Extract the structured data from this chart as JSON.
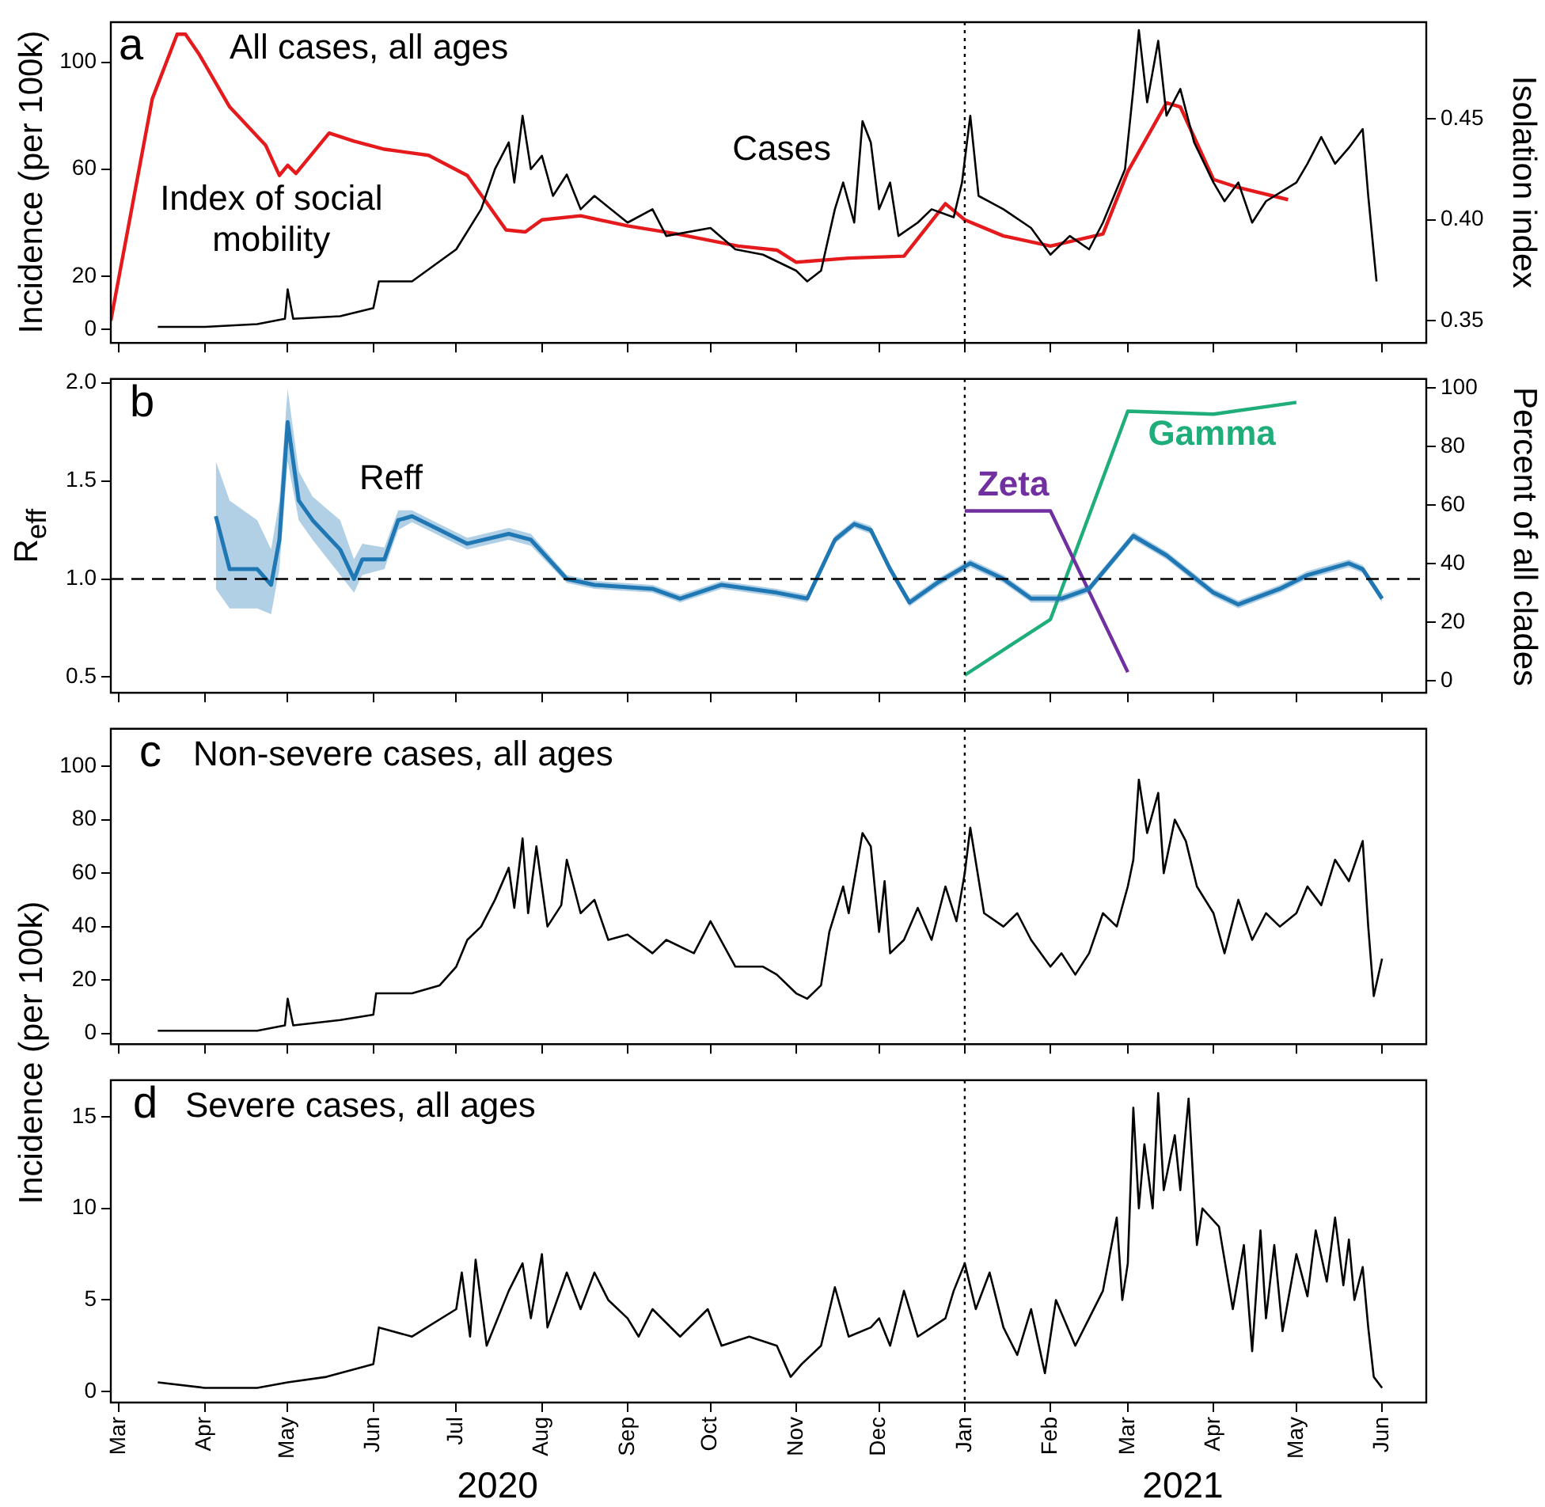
{
  "chart_data": [
    {
      "type": "line",
      "title": "All cases, all ages",
      "ylabel": "Incidence (per 100k)",
      "y2label": "Isolation index",
      "annotations": [
        "a"
      ],
      "marker": "none",
      "tick_labels": "y",
      "xlim": [
        "2020-02-27",
        "2021-06-17"
      ],
      "xticks": [
        {
          "value": "2020-03-01",
          "label": null
        },
        {
          "value": "2020-04-01",
          "label": null
        },
        {
          "value": "2020-05-01",
          "label": null
        },
        {
          "value": "2020-06-01",
          "label": null
        },
        {
          "value": "2020-07-01",
          "label": null
        },
        {
          "value": "2020-08-01",
          "label": null
        },
        {
          "value": "2020-09-01",
          "label": null
        },
        {
          "value": "2020-10-01",
          "label": null
        },
        {
          "value": "2020-11-01",
          "label": null
        },
        {
          "value": "2020-12-01",
          "label": null
        },
        {
          "value": "2021-01-01",
          "label": null
        },
        {
          "value": "2021-02-01",
          "label": null
        },
        {
          "value": "2021-03-01",
          "label": null
        },
        {
          "value": "2021-04-01",
          "label": null
        },
        {
          "value": "2021-05-01",
          "label": null
        },
        {
          "value": "2021-06-01",
          "label": null
        }
      ],
      "ylim": [
        -5,
        115
      ],
      "yticks": [
        0,
        20,
        60,
        100
      ],
      "y2lim": [
        0.339,
        0.498
      ],
      "y2ticks": [
        {
          "value": 0.35,
          "label": "0.35"
        },
        {
          "value": 0.4,
          "label": "0.40"
        },
        {
          "value": 0.45,
          "label": "0.45"
        }
      ],
      "ref_lines": [
        {
          "axis": "x",
          "value": "2021-01-01",
          "line_style": "dotted",
          "color": "#000000"
        }
      ],
      "series": [
        {
          "name": "Cases",
          "color": "#000000",
          "x": [
            "2020-03-15",
            "2020-04-01",
            "2020-04-20",
            "2020-04-30",
            "2020-05-01",
            "2020-05-03",
            "2020-05-20",
            "2020-06-01",
            "2020-06-03",
            "2020-06-15",
            "2020-07-01",
            "2020-07-10",
            "2020-07-15",
            "2020-07-20",
            "2020-07-22",
            "2020-07-25",
            "2020-07-28",
            "2020-08-01",
            "2020-08-05",
            "2020-08-10",
            "2020-08-15",
            "2020-08-20",
            "2020-09-01",
            "2020-09-10",
            "2020-09-15",
            "2020-10-01",
            "2020-10-10",
            "2020-10-20",
            "2020-11-01",
            "2020-11-05",
            "2020-11-10",
            "2020-11-15",
            "2020-11-18",
            "2020-11-22",
            "2020-11-25",
            "2020-11-28",
            "2020-12-01",
            "2020-12-05",
            "2020-12-08",
            "2020-12-15",
            "2020-12-20",
            "2020-12-28",
            "2020-12-31",
            "2021-01-03",
            "2021-01-06",
            "2021-01-15",
            "2021-01-25",
            "2021-02-01",
            "2021-02-08",
            "2021-02-15",
            "2021-02-20",
            "2021-02-28",
            "2021-03-03",
            "2021-03-05",
            "2021-03-08",
            "2021-03-12",
            "2021-03-15",
            "2021-03-20",
            "2021-03-25",
            "2021-04-01",
            "2021-04-05",
            "2021-04-10",
            "2021-04-15",
            "2021-04-20",
            "2021-05-01",
            "2021-05-05",
            "2021-05-10",
            "2021-05-15",
            "2021-05-20",
            "2021-05-25",
            "2021-05-27",
            "2021-05-30"
          ],
          "values": [
            1,
            1,
            2,
            4,
            15,
            4,
            5,
            8,
            18,
            18,
            30,
            45,
            60,
            70,
            55,
            80,
            60,
            65,
            50,
            58,
            45,
            50,
            40,
            45,
            35,
            38,
            30,
            28,
            22,
            18,
            22,
            45,
            55,
            40,
            78,
            70,
            45,
            55,
            35,
            40,
            45,
            42,
            55,
            80,
            50,
            45,
            38,
            28,
            35,
            30,
            40,
            60,
            90,
            112,
            85,
            108,
            80,
            90,
            70,
            55,
            48,
            55,
            40,
            48,
            55,
            62,
            72,
            62,
            68,
            75,
            50,
            18
          ]
        },
        {
          "name": "Index of social mobility",
          "color": "#e41a1c",
          "axis": "y2",
          "x": [
            "2020-02-27",
            "2020-03-13",
            "2020-03-22",
            "2020-03-25",
            "2020-03-30",
            "2020-04-10",
            "2020-04-23",
            "2020-04-28",
            "2020-05-01",
            "2020-05-04",
            "2020-05-16",
            "2020-05-25",
            "2020-06-05",
            "2020-06-21",
            "2020-07-05",
            "2020-07-19",
            "2020-07-26",
            "2020-08-01",
            "2020-08-15",
            "2020-09-01",
            "2020-09-19",
            "2020-10-11",
            "2020-10-25",
            "2020-11-01",
            "2020-11-20",
            "2020-12-10",
            "2020-12-25",
            "2021-01-01",
            "2021-01-15",
            "2021-02-01",
            "2021-02-20",
            "2021-03-01",
            "2021-03-15",
            "2021-03-20",
            "2021-04-01",
            "2021-04-10",
            "2021-04-28"
          ],
          "values": [
            0.35,
            0.46,
            0.492,
            0.492,
            0.482,
            0.456,
            0.437,
            0.422,
            0.427,
            0.423,
            0.443,
            0.439,
            0.435,
            0.432,
            0.422,
            0.395,
            0.394,
            0.4,
            0.402,
            0.397,
            0.393,
            0.387,
            0.385,
            0.379,
            0.381,
            0.382,
            0.408,
            0.4,
            0.392,
            0.387,
            0.393,
            0.424,
            0.458,
            0.456,
            0.42,
            0.416,
            0.41
          ]
        }
      ]
    },
    {
      "type": "line",
      "ylabel": "R$_{eff}$",
      "y2label": "Percent of all clades",
      "annotations": [
        "b"
      ],
      "marker": "none",
      "tick_labels": "y",
      "xlim": [
        "2020-02-27",
        "2021-06-17"
      ],
      "xticks": [
        {
          "value": "2020-03-01",
          "label": null
        },
        {
          "value": "2020-04-01",
          "label": null
        },
        {
          "value": "2020-05-01",
          "label": null
        },
        {
          "value": "2020-06-01",
          "label": null
        },
        {
          "value": "2020-07-01",
          "label": null
        },
        {
          "value": "2020-08-01",
          "label": null
        },
        {
          "value": "2020-09-01",
          "label": null
        },
        {
          "value": "2020-10-01",
          "label": null
        },
        {
          "value": "2020-11-01",
          "label": null
        },
        {
          "value": "2020-12-01",
          "label": null
        },
        {
          "value": "2021-01-01",
          "label": null
        },
        {
          "value": "2021-02-01",
          "label": null
        },
        {
          "value": "2021-03-01",
          "label": null
        },
        {
          "value": "2021-04-01",
          "label": null
        },
        {
          "value": "2021-05-01",
          "label": null
        },
        {
          "value": "2021-06-01",
          "label": null
        }
      ],
      "ylim": [
        0.42,
        2.02
      ],
      "yticks": [
        0.5,
        {
          "value": 1,
          "label": "1.0"
        },
        1.5,
        {
          "value": 2,
          "label": "2.0"
        }
      ],
      "y2lim": [
        -4,
        103
      ],
      "y2ticks": [
        0,
        20,
        40,
        60,
        80,
        100
      ],
      "ref_lines": [
        {
          "axis": "x",
          "value": "2021-01-01",
          "line_style": "dotted",
          "color": "#000000"
        },
        {
          "axis": "y",
          "value": 1,
          "line_style": "dashed",
          "color": "#000000"
        }
      ],
      "series": [
        {
          "name": "Reff",
          "color": "#1f77b4",
          "x": [
            "2020-04-05",
            "2020-04-10",
            "2020-04-20",
            "2020-04-25",
            "2020-04-28",
            "2020-05-01",
            "2020-05-05",
            "2020-05-10",
            "2020-05-20",
            "2020-05-25",
            "2020-05-28",
            "2020-06-05",
            "2020-06-10",
            "2020-06-15",
            "2020-06-25",
            "2020-07-05",
            "2020-07-20",
            "2020-07-28",
            "2020-08-10",
            "2020-08-20",
            "2020-09-10",
            "2020-09-20",
            "2020-10-05",
            "2020-10-25",
            "2020-11-05",
            "2020-11-15",
            "2020-11-22",
            "2020-11-28",
            "2020-12-05",
            "2020-12-12",
            "2020-12-22",
            "2021-01-03",
            "2021-01-15",
            "2021-01-25",
            "2021-02-05",
            "2021-02-15",
            "2021-03-03",
            "2021-03-15",
            "2021-04-01",
            "2021-04-10",
            "2021-04-25",
            "2021-05-05",
            "2021-05-20",
            "2021-05-25",
            "2021-06-01"
          ],
          "values": [
            1.32,
            1.05,
            1.05,
            0.97,
            1.2,
            1.8,
            1.4,
            1.3,
            1.15,
            1.0,
            1.1,
            1.1,
            1.3,
            1.32,
            1.25,
            1.18,
            1.23,
            1.2,
            1.0,
            0.97,
            0.95,
            0.9,
            0.97,
            0.93,
            0.9,
            1.2,
            1.28,
            1.25,
            1.05,
            0.88,
            0.98,
            1.08,
            1.0,
            0.9,
            0.9,
            0.95,
            1.22,
            1.12,
            0.93,
            0.87,
            0.95,
            1.02,
            1.08,
            1.05,
            0.9
          ],
          "lower": [
            0.95,
            0.85,
            0.85,
            0.82,
            1.05,
            1.6,
            1.3,
            1.2,
            1.02,
            0.93,
            1.02,
            1.05,
            1.25,
            1.29,
            1.22,
            1.15,
            1.2,
            1.17,
            0.98,
            0.95,
            0.93,
            0.88,
            0.95,
            0.91,
            0.88,
            1.18,
            1.26,
            1.23,
            1.03,
            0.86,
            0.96,
            1.06,
            0.98,
            0.88,
            0.88,
            0.93,
            1.2,
            1.1,
            0.91,
            0.85,
            0.93,
            1.0,
            1.06,
            1.03,
            0.88
          ],
          "upper": [
            1.6,
            1.4,
            1.3,
            1.15,
            1.4,
            1.97,
            1.55,
            1.42,
            1.3,
            1.1,
            1.18,
            1.16,
            1.35,
            1.35,
            1.28,
            1.21,
            1.26,
            1.23,
            1.02,
            0.99,
            0.97,
            0.92,
            0.99,
            0.95,
            0.92,
            1.22,
            1.3,
            1.27,
            1.07,
            0.9,
            1.0,
            1.1,
            1.02,
            0.92,
            0.92,
            0.97,
            1.24,
            1.14,
            0.95,
            0.89,
            0.97,
            1.04,
            1.1,
            1.07,
            0.92
          ]
        },
        {
          "name": "Zeta",
          "color": "#7030a0",
          "axis": "y2",
          "x": [
            "2021-01-01",
            "2021-02-01",
            "2021-03-01"
          ],
          "values": [
            58,
            58,
            3
          ]
        },
        {
          "name": "Gamma",
          "color": "#1fae7a",
          "axis": "y2",
          "x": [
            "2021-01-01",
            "2021-02-01",
            "2021-03-01",
            "2021-04-01",
            "2021-05-01"
          ],
          "values": [
            2,
            21,
            92,
            91,
            95
          ]
        }
      ]
    },
    {
      "type": "line",
      "title": "Non-severe cases, all ages",
      "annotations": [
        "c"
      ],
      "marker": "none",
      "tick_labels": "y",
      "xlim": [
        "2020-02-27",
        "2021-06-17"
      ],
      "xticks": [
        {
          "value": "2020-03-01",
          "label": null
        },
        {
          "value": "2020-04-01",
          "label": null
        },
        {
          "value": "2020-05-01",
          "label": null
        },
        {
          "value": "2020-06-01",
          "label": null
        },
        {
          "value": "2020-07-01",
          "label": null
        },
        {
          "value": "2020-08-01",
          "label": null
        },
        {
          "value": "2020-09-01",
          "label": null
        },
        {
          "value": "2020-10-01",
          "label": null
        },
        {
          "value": "2020-11-01",
          "label": null
        },
        {
          "value": "2020-12-01",
          "label": null
        },
        {
          "value": "2021-01-01",
          "label": null
        },
        {
          "value": "2021-02-01",
          "label": null
        },
        {
          "value": "2021-03-01",
          "label": null
        },
        {
          "value": "2021-04-01",
          "label": null
        },
        {
          "value": "2021-05-01",
          "label": null
        },
        {
          "value": "2021-06-01",
          "label": null
        }
      ],
      "ylim": [
        -4,
        114
      ],
      "yticks": [
        0,
        20,
        40,
        60,
        80,
        100
      ],
      "ref_lines": [
        {
          "axis": "x",
          "value": "2021-01-01",
          "line_style": "dotted",
          "color": "#000000"
        }
      ],
      "series": [
        {
          "color": "#000000",
          "x": [
            "2020-03-15",
            "2020-04-01",
            "2020-04-20",
            "2020-04-30",
            "2020-05-01",
            "2020-05-03",
            "2020-05-20",
            "2020-06-01",
            "2020-06-02",
            "2020-06-15",
            "2020-06-25",
            "2020-07-01",
            "2020-07-05",
            "2020-07-10",
            "2020-07-15",
            "2020-07-20",
            "2020-07-22",
            "2020-07-25",
            "2020-07-27",
            "2020-07-30",
            "2020-08-03",
            "2020-08-08",
            "2020-08-10",
            "2020-08-15",
            "2020-08-20",
            "2020-08-25",
            "2020-09-01",
            "2020-09-10",
            "2020-09-15",
            "2020-09-25",
            "2020-10-01",
            "2020-10-10",
            "2020-10-20",
            "2020-10-25",
            "2020-11-01",
            "2020-11-05",
            "2020-11-10",
            "2020-11-13",
            "2020-11-18",
            "2020-11-20",
            "2020-11-25",
            "2020-11-28",
            "2020-12-01",
            "2020-12-03",
            "2020-12-05",
            "2020-12-10",
            "2020-12-15",
            "2020-12-20",
            "2020-12-25",
            "2020-12-29",
            "2021-01-01",
            "2021-01-03",
            "2021-01-08",
            "2021-01-15",
            "2021-01-20",
            "2021-01-25",
            "2021-02-01",
            "2021-02-05",
            "2021-02-10",
            "2021-02-15",
            "2021-02-20",
            "2021-02-25",
            "2021-03-01",
            "2021-03-03",
            "2021-03-05",
            "2021-03-08",
            "2021-03-12",
            "2021-03-14",
            "2021-03-18",
            "2021-03-22",
            "2021-03-26",
            "2021-04-01",
            "2021-04-05",
            "2021-04-10",
            "2021-04-15",
            "2021-04-20",
            "2021-04-25",
            "2021-05-01",
            "2021-05-05",
            "2021-05-10",
            "2021-05-15",
            "2021-05-20",
            "2021-05-25",
            "2021-05-27",
            "2021-05-29",
            "2021-06-01"
          ],
          "values": [
            1,
            1,
            1,
            3,
            13,
            3,
            5,
            7,
            15,
            15,
            18,
            25,
            35,
            40,
            50,
            62,
            47,
            73,
            45,
            70,
            40,
            48,
            65,
            45,
            50,
            35,
            37,
            30,
            35,
            30,
            42,
            25,
            25,
            22,
            15,
            13,
            18,
            38,
            55,
            45,
            75,
            70,
            38,
            57,
            30,
            35,
            47,
            35,
            55,
            42,
            60,
            77,
            45,
            40,
            45,
            35,
            25,
            30,
            22,
            30,
            45,
            40,
            55,
            65,
            95,
            75,
            90,
            60,
            80,
            72,
            55,
            45,
            30,
            50,
            35,
            45,
            40,
            45,
            55,
            48,
            65,
            57,
            72,
            40,
            14,
            28
          ]
        }
      ]
    },
    {
      "type": "line",
      "title": "Severe cases, all ages",
      "ylabel": "Incidence (per 100k)",
      "annotations": [
        "d",
        "2020",
        "2021"
      ],
      "marker": "none",
      "xlim": [
        "2020-02-27",
        "2021-06-17"
      ],
      "xticks": [
        {
          "value": "2020-03-01",
          "label": "Mar"
        },
        {
          "value": "2020-04-01",
          "label": "Apr"
        },
        {
          "value": "2020-05-01",
          "label": "May"
        },
        {
          "value": "2020-06-01",
          "label": "Jun"
        },
        {
          "value": "2020-07-01",
          "label": "Jul"
        },
        {
          "value": "2020-08-01",
          "label": "Aug"
        },
        {
          "value": "2020-09-01",
          "label": "Sep"
        },
        {
          "value": "2020-10-01",
          "label": "Oct"
        },
        {
          "value": "2020-11-01",
          "label": "Nov"
        },
        {
          "value": "2020-12-01",
          "label": "Dec"
        },
        {
          "value": "2021-01-01",
          "label": "Jan"
        },
        {
          "value": "2021-02-01",
          "label": "Feb"
        },
        {
          "value": "2021-03-01",
          "label": "Mar"
        },
        {
          "value": "2021-04-01",
          "label": "Apr"
        },
        {
          "value": "2021-05-01",
          "label": "May"
        },
        {
          "value": "2021-06-01",
          "label": "Jun"
        }
      ],
      "ylim": [
        -0.6,
        17
      ],
      "yticks": [
        0,
        5,
        10,
        15
      ],
      "ref_lines": [
        {
          "axis": "x",
          "value": "2021-01-01",
          "line_style": "dotted",
          "color": "#000000"
        }
      ],
      "series": [
        {
          "color": "#000000",
          "x": [
            "2020-03-15",
            "2020-04-01",
            "2020-04-20",
            "2020-05-01",
            "2020-05-15",
            "2020-06-01",
            "2020-06-03",
            "2020-06-15",
            "2020-07-01",
            "2020-07-03",
            "2020-07-06",
            "2020-07-08",
            "2020-07-12",
            "2020-07-20",
            "2020-07-25",
            "2020-07-28",
            "2020-08-01",
            "2020-08-03",
            "2020-08-10",
            "2020-08-15",
            "2020-08-20",
            "2020-08-25",
            "2020-09-01",
            "2020-09-05",
            "2020-09-10",
            "2020-09-20",
            "2020-09-30",
            "2020-10-05",
            "2020-10-15",
            "2020-10-25",
            "2020-10-30",
            "2020-11-03",
            "2020-11-10",
            "2020-11-15",
            "2020-11-20",
            "2020-11-28",
            "2020-12-01",
            "2020-12-05",
            "2020-12-10",
            "2020-12-15",
            "2020-12-25",
            "2020-12-28",
            "2021-01-01",
            "2021-01-05",
            "2021-01-10",
            "2021-01-15",
            "2021-01-20",
            "2021-01-25",
            "2021-01-30",
            "2021-02-03",
            "2021-02-10",
            "2021-02-15",
            "2021-02-20",
            "2021-02-25",
            "2021-02-27",
            "2021-03-01",
            "2021-03-03",
            "2021-03-05",
            "2021-03-07",
            "2021-03-10",
            "2021-03-12",
            "2021-03-14",
            "2021-03-18",
            "2021-03-20",
            "2021-03-23",
            "2021-03-26",
            "2021-03-28",
            "2021-04-03",
            "2021-04-08",
            "2021-04-12",
            "2021-04-15",
            "2021-04-18",
            "2021-04-20",
            "2021-04-23",
            "2021-04-26",
            "2021-05-01",
            "2021-05-05",
            "2021-05-08",
            "2021-05-12",
            "2021-05-15",
            "2021-05-18",
            "2021-05-20",
            "2021-05-22",
            "2021-05-25",
            "2021-05-27",
            "2021-05-29",
            "2021-06-01"
          ],
          "values": [
            0.5,
            0.2,
            0.2,
            0.5,
            0.8,
            1.5,
            3.5,
            3,
            4.5,
            6.5,
            3,
            7.2,
            2.5,
            5.5,
            7,
            4,
            7.5,
            3.5,
            6.5,
            4.5,
            6.5,
            5,
            4,
            3,
            4.5,
            3,
            4.5,
            2.5,
            3,
            2.5,
            0.8,
            1.5,
            2.5,
            5.7,
            3,
            3.5,
            4,
            2.5,
            5.5,
            3,
            4,
            5.5,
            7,
            4.5,
            6.5,
            3.5,
            2,
            4.5,
            1,
            5,
            2.5,
            4,
            5.5,
            9.5,
            5,
            7,
            15.5,
            10,
            13.5,
            10,
            16.3,
            11,
            14,
            11,
            16,
            8,
            10,
            9,
            4.5,
            8,
            2.2,
            8.8,
            4,
            8,
            3.3,
            7.5,
            5.2,
            8.8,
            6,
            9.5,
            5.8,
            8.3,
            5,
            6.8,
            3.5,
            0.8,
            0.2
          ]
        }
      ]
    }
  ]
}
